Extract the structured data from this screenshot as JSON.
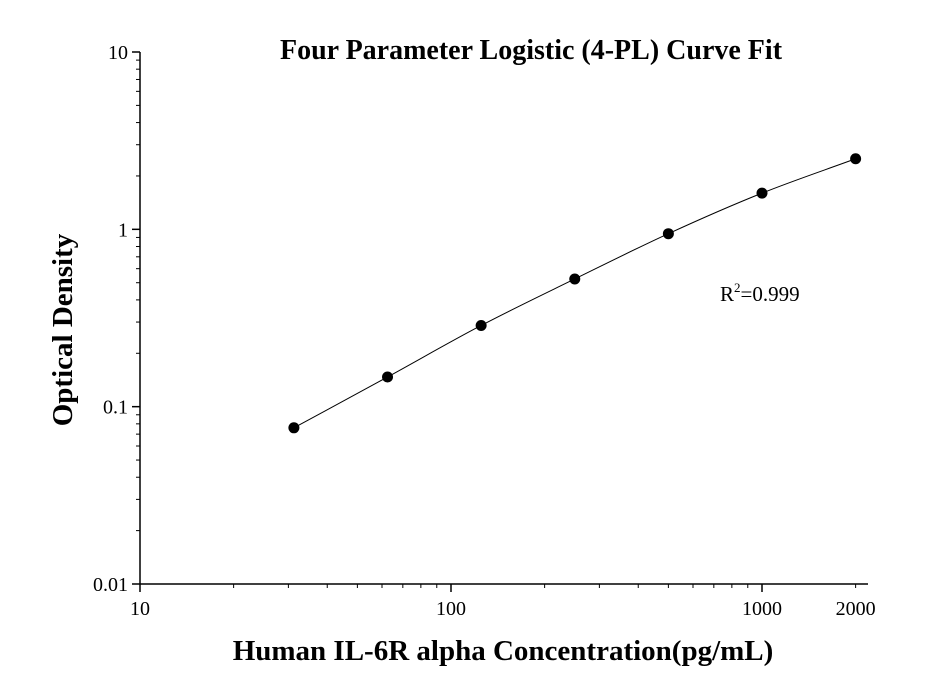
{
  "chart_data": {
    "type": "scatter",
    "title": "Four Parameter Logistic (4-PL) Curve Fit",
    "xlabel": "Human IL-6R alpha Concentration(pg/mL)",
    "ylabel": "Optical Density",
    "x_scale": "log",
    "y_scale": "log",
    "xlim": [
      10,
      2300
    ],
    "ylim": [
      0.01,
      10
    ],
    "x_ticks": [
      {
        "value": 10,
        "label": "10"
      },
      {
        "value": 100,
        "label": "100"
      },
      {
        "value": 1000,
        "label": "1000"
      },
      {
        "value": 2000,
        "label": "2000"
      }
    ],
    "y_ticks": [
      {
        "value": 0.01,
        "label": "0.01"
      },
      {
        "value": 0.1,
        "label": "0.1"
      },
      {
        "value": 1,
        "label": "1"
      },
      {
        "value": 10,
        "label": "10"
      }
    ],
    "grid": false,
    "series": [
      {
        "x": [
          31.25,
          62.5,
          125,
          250,
          500,
          1000,
          2000
        ],
        "y": [
          0.076,
          0.147,
          0.287,
          0.525,
          0.945,
          1.6,
          2.5
        ],
        "marker": "circle",
        "color": "#000000"
      }
    ],
    "fit_curve": {
      "model": "4PL",
      "x_range": [
        31.25,
        2000
      ],
      "color": "#000000"
    },
    "annotation": {
      "base": "R",
      "superscript": "2",
      "value_text": "=0.999"
    }
  }
}
